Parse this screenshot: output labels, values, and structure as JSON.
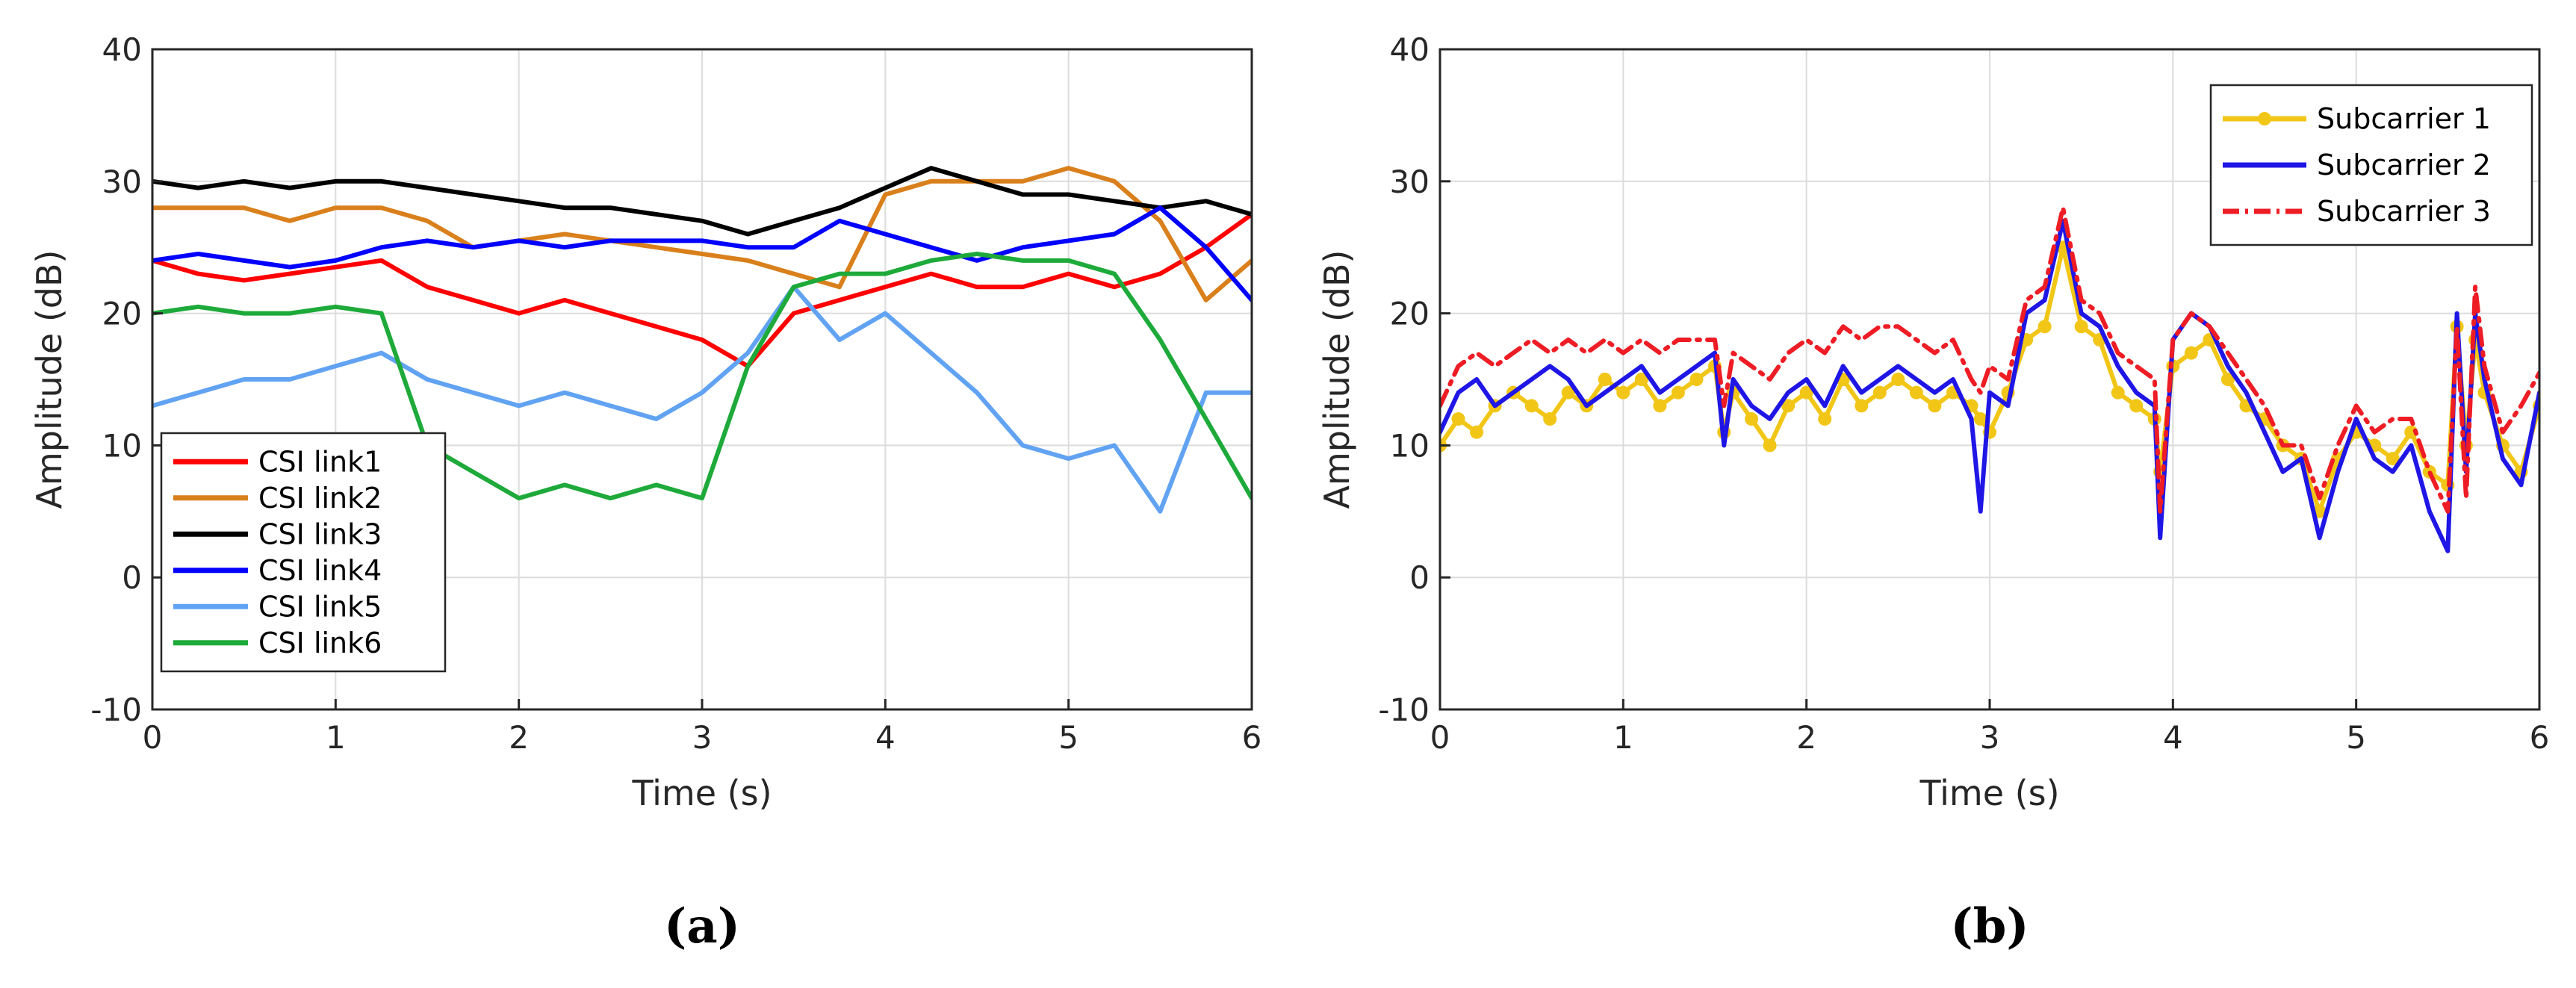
{
  "chart_data": [
    {
      "type": "line",
      "caption": "(a)",
      "xlabel": "Time (s)",
      "ylabel": "Amplitude (dB)",
      "xlim": [
        0,
        6
      ],
      "ylim": [
        -10,
        40
      ],
      "xticks": [
        "0",
        "1",
        "2",
        "3",
        "4",
        "5",
        "6"
      ],
      "yticks": [
        "-10",
        "0",
        "10",
        "20",
        "30",
        "40"
      ],
      "grid": true,
      "legend_position": "bottom-left",
      "x": [
        0,
        0.25,
        0.5,
        0.75,
        1,
        1.25,
        1.5,
        1.75,
        2,
        2.25,
        2.5,
        2.75,
        3,
        3.25,
        3.5,
        3.75,
        4,
        4.25,
        4.5,
        4.75,
        5,
        5.25,
        5.5,
        5.75,
        6
      ],
      "series": [
        {
          "name": "CSI link1",
          "color": "#ff0000",
          "width": 6,
          "dash": "",
          "marker": false,
          "values": [
            24,
            23,
            22.5,
            23,
            23.5,
            24,
            22,
            21,
            20,
            21,
            20,
            19,
            18,
            16,
            20,
            21,
            22,
            23,
            22,
            22,
            23,
            22,
            23,
            25,
            27.5
          ]
        },
        {
          "name": "CSI link2",
          "color": "#d9801c",
          "width": 6,
          "dash": "",
          "marker": false,
          "values": [
            28,
            28,
            28,
            27,
            28,
            28,
            27,
            25,
            25.5,
            26,
            25.5,
            25,
            24.5,
            24,
            23,
            22,
            29,
            30,
            30,
            30,
            31,
            30,
            27,
            21,
            24
          ]
        },
        {
          "name": "CSI link3",
          "color": "#000000",
          "width": 6,
          "dash": "",
          "marker": false,
          "values": [
            30,
            29.5,
            30,
            29.5,
            30,
            30,
            29.5,
            29,
            28.5,
            28,
            28,
            27.5,
            27,
            26,
            27,
            28,
            29.5,
            31,
            30,
            29,
            29,
            28.5,
            28,
            28.5,
            27.5
          ]
        },
        {
          "name": "CSI link4",
          "color": "#0000ff",
          "width": 6,
          "dash": "",
          "marker": false,
          "values": [
            24,
            24.5,
            24,
            23.5,
            24,
            25,
            25.5,
            25,
            25.5,
            25,
            25.5,
            25.5,
            25.5,
            25,
            25,
            27,
            26,
            25,
            24,
            25,
            25.5,
            26,
            28,
            25,
            21
          ]
        },
        {
          "name": "CSI link5",
          "color": "#61a3f2",
          "width": 6,
          "dash": "",
          "marker": false,
          "values": [
            13,
            14,
            15,
            15,
            16,
            17,
            15,
            14,
            13,
            14,
            13,
            12,
            14,
            17,
            22,
            18,
            20,
            17,
            14,
            10,
            9,
            10,
            5,
            14,
            14
          ]
        },
        {
          "name": "CSI link6",
          "color": "#1eaa3a",
          "width": 6,
          "dash": "",
          "marker": false,
          "values": [
            20,
            20.5,
            20,
            20,
            20.5,
            20,
            10,
            8,
            6,
            7,
            6,
            7,
            6,
            16,
            22,
            23,
            23,
            24,
            24.5,
            24,
            24,
            23,
            18,
            12,
            6
          ]
        }
      ]
    },
    {
      "type": "line",
      "caption": "(b)",
      "xlabel": "Time (s)",
      "ylabel": "Amplitude (dB)",
      "xlim": [
        0,
        6
      ],
      "ylim": [
        -10,
        40
      ],
      "xticks": [
        "0",
        "1",
        "2",
        "3",
        "4",
        "5",
        "6"
      ],
      "yticks": [
        "-10",
        "0",
        "10",
        "20",
        "30",
        "40"
      ],
      "grid": true,
      "legend_position": "top-right",
      "x": [
        0,
        0.1,
        0.2,
        0.3,
        0.4,
        0.5,
        0.6,
        0.7,
        0.8,
        0.9,
        1,
        1.1,
        1.2,
        1.3,
        1.4,
        1.5,
        1.55,
        1.6,
        1.7,
        1.8,
        1.9,
        2,
        2.1,
        2.2,
        2.3,
        2.4,
        2.5,
        2.6,
        2.7,
        2.8,
        2.9,
        2.95,
        3,
        3.1,
        3.2,
        3.3,
        3.4,
        3.5,
        3.6,
        3.7,
        3.8,
        3.9,
        3.93,
        4,
        4.1,
        4.2,
        4.3,
        4.4,
        4.5,
        4.6,
        4.7,
        4.8,
        4.9,
        5,
        5.1,
        5.2,
        5.3,
        5.4,
        5.5,
        5.55,
        5.6,
        5.65,
        5.7,
        5.8,
        5.9,
        6
      ],
      "series": [
        {
          "name": "Subcarrier 1",
          "color": "#f2c617",
          "width": 6,
          "dash": "",
          "marker": true,
          "values": [
            10,
            12,
            11,
            13,
            14,
            13,
            12,
            14,
            13,
            15,
            14,
            15,
            13,
            14,
            15,
            16,
            11,
            14,
            12,
            10,
            13,
            14,
            12,
            15,
            13,
            14,
            15,
            14,
            13,
            14,
            13,
            12,
            11,
            14,
            18,
            19,
            25,
            19,
            18,
            14,
            13,
            12,
            8,
            16,
            17,
            18,
            15,
            13,
            12,
            10,
            9,
            5,
            9,
            11,
            10,
            9,
            11,
            8,
            7,
            19,
            10,
            18,
            14,
            10,
            8,
            13
          ]
        },
        {
          "name": "Subcarrier 2",
          "color": "#1f16e6",
          "width": 6,
          "dash": "",
          "marker": false,
          "values": [
            11,
            14,
            15,
            13,
            14,
            15,
            16,
            15,
            13,
            14,
            15,
            16,
            14,
            15,
            16,
            17,
            10,
            15,
            13,
            12,
            14,
            15,
            13,
            16,
            14,
            15,
            16,
            15,
            14,
            15,
            12,
            5,
            14,
            13,
            20,
            21,
            27,
            20,
            19,
            16,
            14,
            13,
            3,
            18,
            20,
            19,
            16,
            14,
            11,
            8,
            9,
            3,
            8,
            12,
            9,
            8,
            10,
            5,
            2,
            20,
            8,
            20,
            15,
            9,
            7,
            14
          ]
        },
        {
          "name": "Subcarrier 3",
          "color": "#ee1c24",
          "width": 6,
          "dash": "22,10,4,10",
          "marker": false,
          "values": [
            13,
            16,
            17,
            16,
            17,
            18,
            17,
            18,
            17,
            18,
            17,
            18,
            17,
            18,
            18,
            18,
            13,
            17,
            16,
            15,
            17,
            18,
            17,
            19,
            18,
            19,
            19,
            18,
            17,
            18,
            15,
            14,
            16,
            15,
            21,
            22,
            28,
            21,
            20,
            17,
            16,
            15,
            5,
            18,
            20,
            19,
            17,
            15,
            13,
            10,
            10,
            6,
            10,
            13,
            11,
            12,
            12,
            8,
            5,
            19,
            6,
            22,
            16,
            11,
            13,
            15.5
          ]
        }
      ]
    }
  ]
}
